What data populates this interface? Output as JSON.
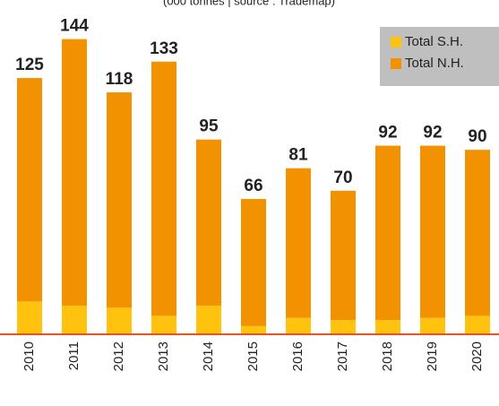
{
  "chart_data": {
    "type": "stacked-bar",
    "subtitle": "(000 tonnes | source : Trademap)",
    "categories": [
      "2010",
      "2011",
      "2012",
      "2013",
      "2014",
      "2015",
      "2016",
      "2017",
      "2018",
      "2019",
      "2020"
    ],
    "series": [
      {
        "name": "Total S.H.",
        "color": "#ffc20e",
        "values": [
          16,
          14,
          13,
          9,
          14,
          4,
          8,
          7,
          7,
          8,
          9
        ]
      },
      {
        "name": "Total N.H.",
        "color": "#f39200",
        "values": [
          109,
          130,
          105,
          124,
          81,
          62,
          73,
          63,
          85,
          84,
          81
        ]
      }
    ],
    "totals": [
      125,
      144,
      118,
      133,
      95,
      66,
      81,
      70,
      92,
      92,
      90
    ],
    "ylim": [
      0,
      160
    ],
    "legend": "top-right"
  }
}
